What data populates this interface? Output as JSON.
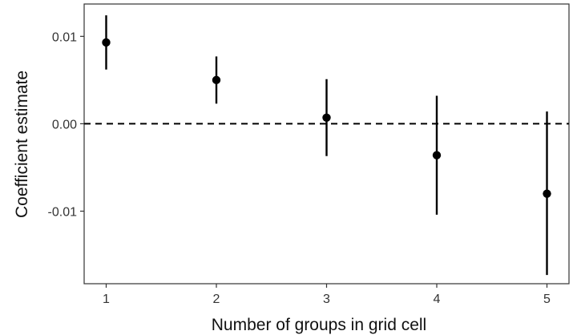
{
  "chart_data": {
    "type": "scatter",
    "title": "",
    "xlabel": "Number of groups in grid cell",
    "ylabel": "Coefficient estimate",
    "x": [
      1,
      2,
      3,
      4,
      5
    ],
    "series": [
      {
        "estimates": [
          0.0093,
          0.005,
          0.0007,
          -0.0036,
          -0.008
        ],
        "lower": [
          0.0062,
          0.0023,
          -0.0037,
          -0.0104,
          -0.0173
        ],
        "upper": [
          0.0124,
          0.0077,
          0.0051,
          0.0032,
          0.0014
        ]
      }
    ],
    "x_ticks": [
      1,
      2,
      3,
      4,
      5
    ],
    "x_tick_labels": [
      "1",
      "2",
      "3",
      "4",
      "5"
    ],
    "y_ticks": [
      0.01,
      0.0,
      -0.01
    ],
    "y_tick_labels": [
      "0.01",
      "0.00",
      "-0.01"
    ],
    "xlim": [
      0.8,
      5.2
    ],
    "ylim": [
      -0.0183,
      0.0137
    ],
    "reference_line": {
      "y": 0,
      "style": "dashed"
    },
    "grid": false,
    "legend": "none",
    "colors": {
      "points": "#000000",
      "error_bars": "#000000",
      "reference_line": "#000000",
      "axis": "#333333"
    }
  }
}
